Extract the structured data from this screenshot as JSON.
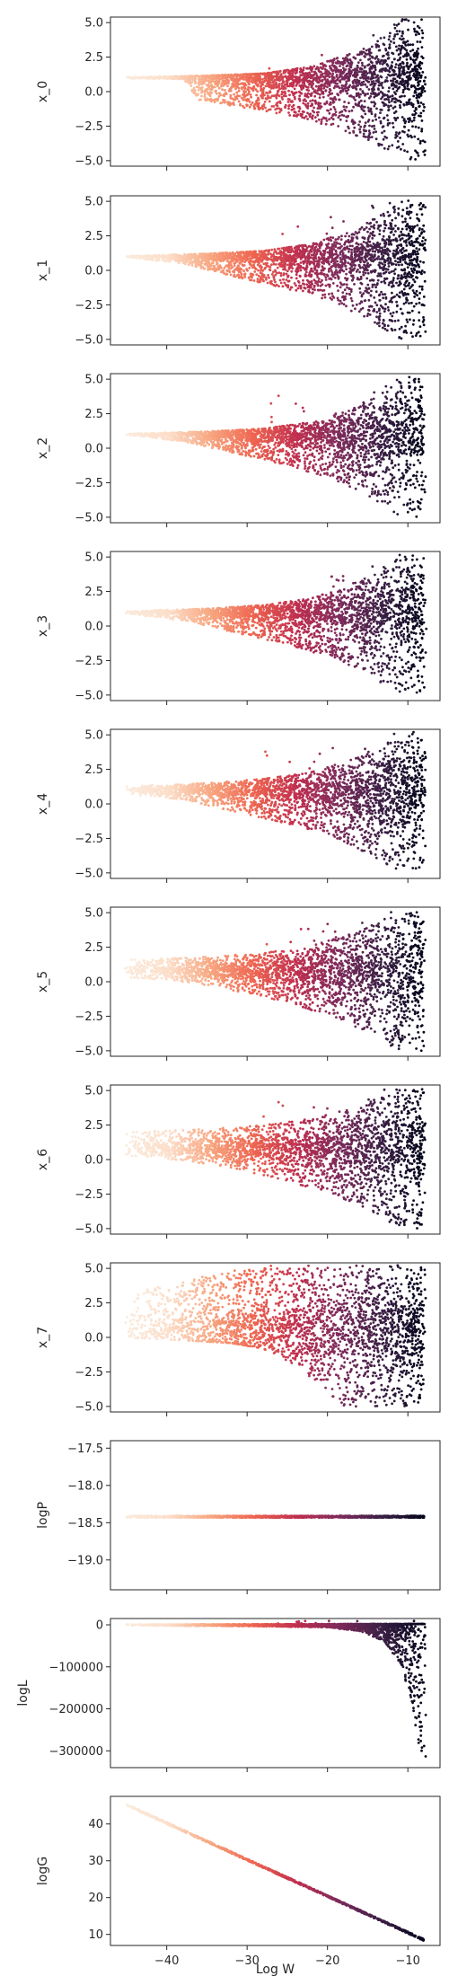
{
  "chart_data": {
    "type": "scatter",
    "layout": "11 vertically stacked panels with a shared x axis",
    "xlabel": "Log W",
    "xlim": [
      -47,
      -6
    ],
    "xticks": [
      -40,
      -30,
      -20,
      -10
    ],
    "x_tick_labels": [
      "−40",
      "−30",
      "−20",
      "−10"
    ],
    "colormap": "rocket",
    "colormap_stops": [
      "#03051a",
      "#3b1f45",
      "#7d2b5b",
      "#c02f4f",
      "#ee6450",
      "#f7a57f",
      "#fcdec9",
      "#faebdd"
    ],
    "color_encoding": "point color goes from light cream at Log W ≈ −45 to near-black at Log W ≈ −8",
    "panels": [
      {
        "id": "x0",
        "ylabel": "x_0",
        "ylim": [
          -5.4,
          5.4
        ],
        "yticks": [
          5.0,
          2.5,
          0.0,
          -2.5,
          -5.0
        ],
        "ytick_labels": [
          "5.0",
          "2.5",
          "0.0",
          "−2.5",
          "−5.0"
        ],
        "envelope": {
          "center": 1.0,
          "x_start": -45,
          "upper": [
            [
              -45,
              1.05
            ],
            [
              -35,
              1.15
            ],
            [
              -28,
              1.3
            ],
            [
              -22,
              1.8
            ],
            [
              -18,
              2.6
            ],
            [
              -14,
              3.6
            ],
            [
              -12,
              4.6
            ],
            [
              -11,
              5.0
            ],
            [
              -8,
              5.0
            ]
          ],
          "lower": [
            [
              -45,
              0.95
            ],
            [
              -38,
              0.9
            ],
            [
              -36,
              -0.6
            ],
            [
              -30,
              -1.2
            ],
            [
              -24,
              -1.8
            ],
            [
              -19,
              -2.6
            ],
            [
              -15,
              -3.5
            ],
            [
              -12,
              -4.6
            ],
            [
              -11,
              -5.0
            ],
            [
              -8,
              -5.0
            ]
          ]
        }
      },
      {
        "id": "x1",
        "ylabel": "x_1",
        "ylim": [
          -5.4,
          5.4
        ],
        "yticks": [
          5.0,
          2.5,
          0.0,
          -2.5,
          -5.0
        ],
        "ytick_labels": [
          "5.0",
          "2.5",
          "0.0",
          "−2.5",
          "−5.0"
        ],
        "envelope": {
          "center": 1.0,
          "x_start": -45,
          "upper": [
            [
              -45,
              1.05
            ],
            [
              -35,
              1.2
            ],
            [
              -28,
              1.4
            ],
            [
              -22,
              1.9
            ],
            [
              -18,
              2.7
            ],
            [
              -14,
              3.7
            ],
            [
              -12,
              4.6
            ],
            [
              -11,
              5.0
            ],
            [
              -8,
              5.0
            ]
          ],
          "lower": [
            [
              -45,
              0.95
            ],
            [
              -38,
              0.5
            ],
            [
              -32,
              -0.4
            ],
            [
              -26,
              -1.2
            ],
            [
              -20,
              -2.2
            ],
            [
              -16,
              -3.2
            ],
            [
              -12.5,
              -4.4
            ],
            [
              -11,
              -5.0
            ],
            [
              -8,
              -5.0
            ]
          ]
        }
      },
      {
        "id": "x2",
        "ylabel": "x_2",
        "ylim": [
          -5.4,
          5.4
        ],
        "yticks": [
          5.0,
          2.5,
          0.0,
          -2.5,
          -5.0
        ],
        "ytick_labels": [
          "5.0",
          "2.5",
          "0.0",
          "−2.5",
          "−5.0"
        ],
        "envelope": {
          "center": 1.0,
          "x_start": -45,
          "upper": [
            [
              -45,
              1.05
            ],
            [
              -35,
              1.2
            ],
            [
              -28,
              1.4
            ],
            [
              -22,
              1.9
            ],
            [
              -18,
              2.7
            ],
            [
              -14,
              3.7
            ],
            [
              -12,
              4.6
            ],
            [
              -11,
              5.0
            ],
            [
              -8,
              5.0
            ]
          ],
          "lower": [
            [
              -45,
              0.95
            ],
            [
              -38,
              0.5
            ],
            [
              -32,
              -0.3
            ],
            [
              -26,
              -1.1
            ],
            [
              -20,
              -2.1
            ],
            [
              -16,
              -3.1
            ],
            [
              -12.5,
              -4.4
            ],
            [
              -11,
              -5.0
            ],
            [
              -8,
              -5.0
            ]
          ]
        }
      },
      {
        "id": "x3",
        "ylabel": "x_3",
        "ylim": [
          -5.4,
          5.4
        ],
        "yticks": [
          5.0,
          2.5,
          0.0,
          -2.5,
          -5.0
        ],
        "ytick_labels": [
          "5.0",
          "2.5",
          "0.0",
          "−2.5",
          "−5.0"
        ],
        "envelope": {
          "center": 1.0,
          "x_start": -45,
          "upper": [
            [
              -45,
              1.1
            ],
            [
              -35,
              1.25
            ],
            [
              -28,
              1.5
            ],
            [
              -22,
              2.0
            ],
            [
              -18,
              2.8
            ],
            [
              -14,
              3.8
            ],
            [
              -12,
              4.7
            ],
            [
              -11,
              5.0
            ],
            [
              -8,
              5.0
            ]
          ],
          "lower": [
            [
              -45,
              0.9
            ],
            [
              -38,
              0.4
            ],
            [
              -32,
              -0.4
            ],
            [
              -26,
              -1.2
            ],
            [
              -20,
              -2.2
            ],
            [
              -16,
              -3.2
            ],
            [
              -12.5,
              -4.4
            ],
            [
              -11,
              -5.0
            ],
            [
              -8,
              -5.0
            ]
          ]
        }
      },
      {
        "id": "x4",
        "ylabel": "x_4",
        "ylim": [
          -5.4,
          5.4
        ],
        "yticks": [
          5.0,
          2.5,
          0.0,
          -2.5,
          -5.0
        ],
        "ytick_labels": [
          "5.0",
          "2.5",
          "0.0",
          "−2.5",
          "−5.0"
        ],
        "envelope": {
          "center": 1.0,
          "x_start": -45,
          "upper": [
            [
              -45,
              1.3
            ],
            [
              -35,
              1.5
            ],
            [
              -28,
              1.8
            ],
            [
              -22,
              2.3
            ],
            [
              -18,
              3.0
            ],
            [
              -14,
              4.0
            ],
            [
              -12,
              4.8
            ],
            [
              -11,
              5.0
            ],
            [
              -8,
              5.0
            ]
          ],
          "lower": [
            [
              -45,
              0.7
            ],
            [
              -38,
              0.3
            ],
            [
              -32,
              -0.5
            ],
            [
              -26,
              -1.3
            ],
            [
              -20,
              -2.3
            ],
            [
              -16,
              -3.3
            ],
            [
              -12.5,
              -4.4
            ],
            [
              -11,
              -5.0
            ],
            [
              -8,
              -5.0
            ]
          ]
        }
      },
      {
        "id": "x5",
        "ylabel": "x_5",
        "ylim": [
          -5.4,
          5.4
        ],
        "yticks": [
          5.0,
          2.5,
          0.0,
          -2.5,
          -5.0
        ],
        "ytick_labels": [
          "5.0",
          "2.5",
          "0.0",
          "−2.5",
          "−5.0"
        ],
        "envelope": {
          "center": 0.8,
          "x_start": -45,
          "upper": [
            [
              -45,
              1.6
            ],
            [
              -35,
              1.8
            ],
            [
              -28,
              2.1
            ],
            [
              -22,
              2.6
            ],
            [
              -18,
              3.3
            ],
            [
              -14,
              4.2
            ],
            [
              -12,
              4.9
            ],
            [
              -11,
              5.0
            ],
            [
              -8,
              5.0
            ]
          ],
          "lower": [
            [
              -45,
              0.3
            ],
            [
              -38,
              0.0
            ],
            [
              -32,
              -0.6
            ],
            [
              -26,
              -1.4
            ],
            [
              -20,
              -2.4
            ],
            [
              -16,
              -3.4
            ],
            [
              -12.5,
              -4.5
            ],
            [
              -11,
              -5.0
            ],
            [
              -8,
              -5.0
            ]
          ]
        }
      },
      {
        "id": "x6",
        "ylabel": "x_6",
        "ylim": [
          -5.4,
          5.4
        ],
        "yticks": [
          5.0,
          2.5,
          0.0,
          -2.5,
          -5.0
        ],
        "ytick_labels": [
          "5.0",
          "2.5",
          "0.0",
          "−2.5",
          "−5.0"
        ],
        "envelope": {
          "center": 0.8,
          "x_start": -45,
          "upper": [
            [
              -45,
              2.0
            ],
            [
              -35,
              2.2
            ],
            [
              -28,
              2.5
            ],
            [
              -22,
              3.0
            ],
            [
              -18,
              3.6
            ],
            [
              -14,
              4.4
            ],
            [
              -12,
              4.9
            ],
            [
              -11,
              5.0
            ],
            [
              -8,
              5.0
            ]
          ],
          "lower": [
            [
              -45,
              0.2
            ],
            [
              -38,
              -0.1
            ],
            [
              -32,
              -0.6
            ],
            [
              -26,
              -1.4
            ],
            [
              -20,
              -2.4
            ],
            [
              -16,
              -3.4
            ],
            [
              -12.5,
              -4.5
            ],
            [
              -11,
              -5.0
            ],
            [
              -8,
              -5.0
            ]
          ]
        }
      },
      {
        "id": "x7",
        "ylabel": "x_7",
        "ylim": [
          -5.4,
          5.4
        ],
        "yticks": [
          5.0,
          2.5,
          0.0,
          -2.5,
          -5.0
        ],
        "ytick_labels": [
          "5.0",
          "2.5",
          "0.0",
          "−2.5",
          "−5.0"
        ],
        "envelope": {
          "center": 0.5,
          "x_start": -45,
          "upper": [
            [
              -45,
              3.2
            ],
            [
              -38,
              4.0
            ],
            [
              -33,
              4.8
            ],
            [
              -28,
              5.0
            ],
            [
              -8,
              5.0
            ]
          ],
          "lower": [
            [
              -45,
              0.0
            ],
            [
              -38,
              -0.2
            ],
            [
              -32,
              -0.4
            ],
            [
              -28,
              -0.8
            ],
            [
              -24,
              -2.0
            ],
            [
              -21,
              -3.4
            ],
            [
              -19,
              -4.6
            ],
            [
              -18,
              -5.0
            ],
            [
              -8,
              -5.0
            ]
          ]
        }
      },
      {
        "id": "logP",
        "ylabel": "logP",
        "ylim": [
          -19.4,
          -17.4
        ],
        "yticks": [
          -17.5,
          -18.0,
          -18.5,
          -19.0
        ],
        "ytick_labels": [
          "−17.5",
          "−18.0",
          "−18.5",
          "−19.0"
        ],
        "line": {
          "y": -18.42,
          "x_range": [
            -45,
            -8
          ]
        }
      },
      {
        "id": "logL",
        "ylabel": "logL",
        "ylim": [
          -340000,
          15000
        ],
        "yticks": [
          0,
          -100000,
          -200000,
          -300000
        ],
        "ytick_labels": [
          "0",
          "−100000",
          "−200000",
          "−300000"
        ],
        "envelope": {
          "center": 0,
          "x_start": -45,
          "upper": [
            [
              -45,
              1000
            ],
            [
              -8,
              2000
            ]
          ],
          "lower": [
            [
              -45,
              -2000
            ],
            [
              -30,
              -3000
            ],
            [
              -20,
              -6000
            ],
            [
              -16,
              -15000
            ],
            [
              -13,
              -40000
            ],
            [
              -11,
              -90000
            ],
            [
              -9.5,
              -180000
            ],
            [
              -9,
              -250000
            ],
            [
              -8.5,
              -300000
            ],
            [
              -8,
              -320000
            ]
          ]
        }
      },
      {
        "id": "logG",
        "ylabel": "logG",
        "ylim": [
          7,
          47.5
        ],
        "yticks": [
          40,
          30,
          20,
          10
        ],
        "ytick_labels": [
          "40",
          "30",
          "20",
          "10"
        ],
        "diagonal": {
          "x_range": [
            -45,
            -8
          ],
          "y_at_start": 45.2,
          "y_at_end": 8.5
        }
      }
    ]
  }
}
